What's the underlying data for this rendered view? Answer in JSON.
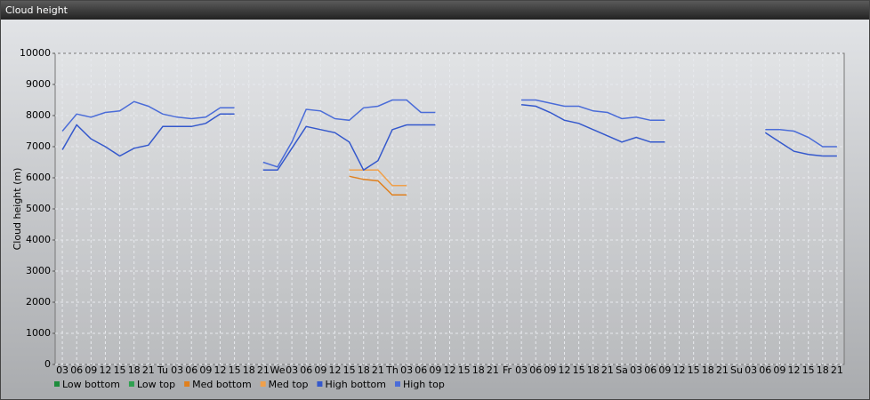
{
  "window_title": "Cloud height",
  "chart_data": {
    "type": "line",
    "y_label": "Cloud height (m)",
    "categories": [
      "03",
      "06",
      "09",
      "12",
      "15",
      "18",
      "21",
      "Tu",
      "03",
      "06",
      "09",
      "12",
      "15",
      "18",
      "21",
      "We",
      "03",
      "06",
      "09",
      "12",
      "15",
      "18",
      "21",
      "Th",
      "03",
      "06",
      "09",
      "12",
      "15",
      "18",
      "21",
      "Fr",
      "03",
      "06",
      "09",
      "12",
      "15",
      "18",
      "21",
      "Sa",
      "03",
      "06",
      "09",
      "12",
      "15",
      "18",
      "21",
      "Su",
      "03",
      "06",
      "09",
      "12",
      "15",
      "18",
      "21"
    ],
    "ylim": [
      0,
      10000
    ],
    "yticks": [
      0,
      1000,
      2000,
      3000,
      4000,
      5000,
      6000,
      7000,
      8000,
      9000,
      10000
    ],
    "grid": true,
    "series": [
      {
        "name": "Low bottom",
        "color": "#1e8c3c",
        "values": [
          null,
          null,
          null,
          null,
          null,
          null,
          null,
          null,
          null,
          null,
          null,
          null,
          null,
          null,
          null,
          null,
          null,
          null,
          null,
          null,
          null,
          null,
          null,
          null,
          null,
          null,
          null,
          null,
          null,
          null,
          null,
          null,
          null,
          null,
          null,
          null,
          null,
          null,
          null,
          null,
          null,
          null,
          null,
          null,
          null,
          null,
          null,
          null,
          null,
          null,
          null,
          null,
          null,
          null,
          null
        ]
      },
      {
        "name": "Low top",
        "color": "#2fa050",
        "values": [
          null,
          null,
          null,
          null,
          null,
          null,
          null,
          null,
          null,
          null,
          null,
          null,
          null,
          null,
          null,
          null,
          null,
          null,
          null,
          null,
          null,
          null,
          null,
          null,
          null,
          null,
          null,
          null,
          null,
          null,
          null,
          null,
          null,
          null,
          null,
          null,
          null,
          null,
          null,
          null,
          null,
          null,
          null,
          null,
          null,
          null,
          null,
          null,
          null,
          null,
          null,
          null,
          null,
          null,
          null
        ]
      },
      {
        "name": "Med bottom",
        "color": "#e0801e",
        "values": [
          null,
          null,
          null,
          null,
          null,
          null,
          null,
          null,
          null,
          null,
          null,
          null,
          null,
          null,
          null,
          null,
          null,
          null,
          null,
          null,
          6050,
          5950,
          5900,
          5450,
          5450,
          null,
          null,
          null,
          null,
          null,
          null,
          null,
          null,
          null,
          null,
          null,
          null,
          null,
          null,
          null,
          null,
          null,
          null,
          null,
          null,
          null,
          null,
          null,
          null,
          null,
          null,
          null,
          null,
          null,
          null
        ]
      },
      {
        "name": "Med top",
        "color": "#f0a04a",
        "values": [
          null,
          null,
          null,
          null,
          null,
          null,
          null,
          null,
          null,
          null,
          null,
          null,
          null,
          null,
          null,
          null,
          null,
          null,
          null,
          null,
          6250,
          6250,
          6250,
          5750,
          5750,
          null,
          null,
          null,
          null,
          null,
          null,
          null,
          null,
          null,
          null,
          null,
          null,
          null,
          null,
          null,
          null,
          null,
          null,
          null,
          null,
          null,
          null,
          null,
          null,
          null,
          null,
          null,
          null,
          null,
          null
        ]
      },
      {
        "name": "High bottom",
        "color": "#3458cc",
        "values": [
          6900,
          7700,
          7250,
          7000,
          6700,
          6950,
          7050,
          7650,
          7650,
          7650,
          7750,
          8050,
          8050,
          null,
          6250,
          6250,
          6950,
          7650,
          7550,
          7450,
          7150,
          6250,
          6550,
          7550,
          7700,
          7700,
          7700,
          null,
          null,
          null,
          null,
          null,
          8350,
          8300,
          8100,
          7850,
          7750,
          7550,
          7350,
          7150,
          7300,
          7150,
          7150,
          null,
          null,
          null,
          null,
          null,
          null,
          7450,
          7150,
          6850,
          6750,
          6700,
          6700
        ]
      },
      {
        "name": "High top",
        "color": "#4a6cd8",
        "values": [
          7500,
          8050,
          7950,
          8100,
          8150,
          8450,
          8300,
          8050,
          7950,
          7900,
          7950,
          8250,
          8250,
          null,
          6500,
          6350,
          7150,
          8200,
          8150,
          7900,
          7850,
          8250,
          8300,
          8500,
          8500,
          8100,
          8100,
          null,
          null,
          null,
          null,
          null,
          8500,
          8500,
          8400,
          8300,
          8300,
          8150,
          8100,
          7900,
          7950,
          7850,
          7850,
          null,
          null,
          null,
          null,
          null,
          null,
          7550,
          7550,
          7500,
          7300,
          7000,
          7000
        ]
      }
    ]
  }
}
